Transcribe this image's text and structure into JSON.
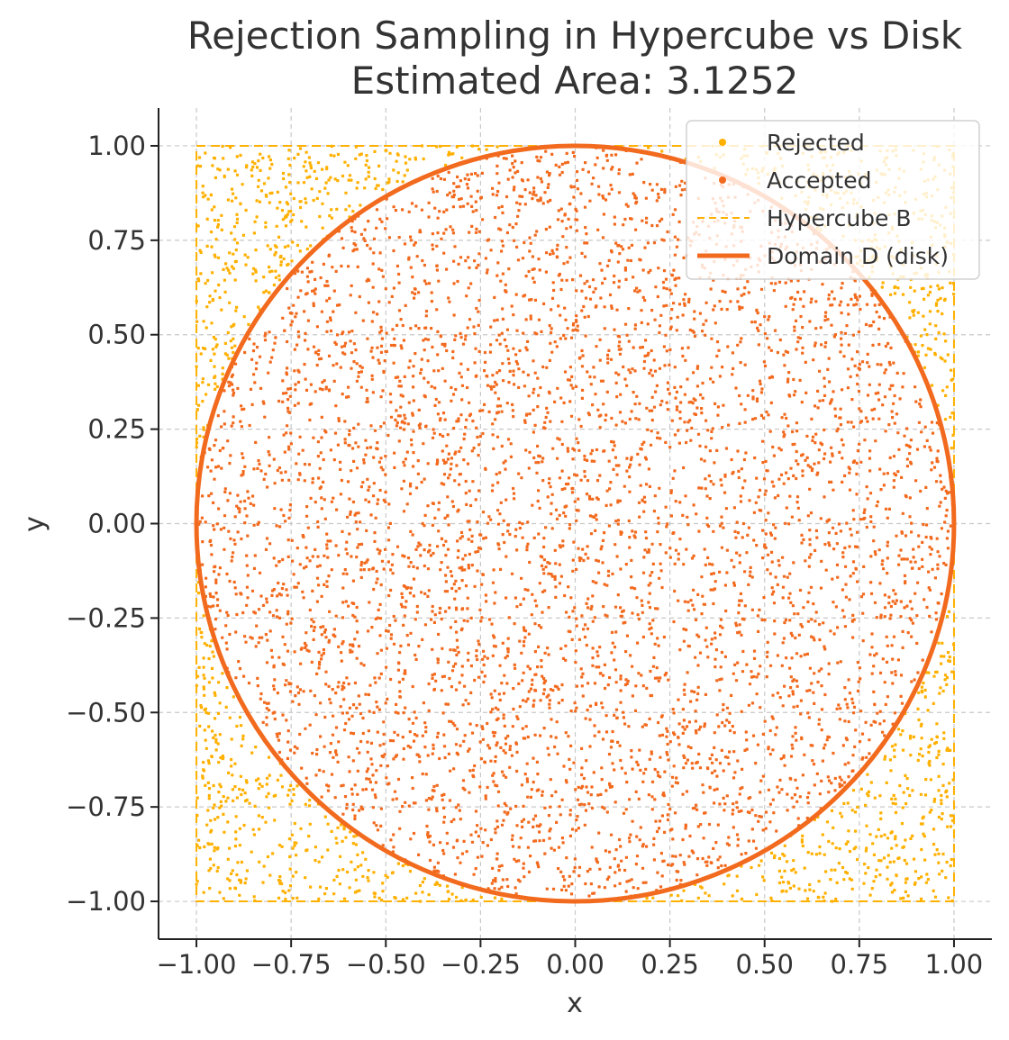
{
  "chart_data": {
    "type": "scatter",
    "title": "Rejection Sampling in Hypercube vs Disk",
    "subtitle": "Estimated Area: 3.1252",
    "xlabel": "x",
    "ylabel": "y",
    "xlim": [
      -1.1,
      1.1
    ],
    "ylim": [
      -1.1,
      1.1
    ],
    "x_ticks": [
      -1.0,
      -0.75,
      -0.5,
      -0.25,
      0.0,
      0.25,
      0.5,
      0.75,
      1.0
    ],
    "y_ticks": [
      -1.0,
      -0.75,
      -0.5,
      -0.25,
      0.0,
      0.25,
      0.5,
      0.75,
      1.0
    ],
    "x_tick_labels": [
      "−1.00",
      "−0.75",
      "−0.50",
      "−0.25",
      "0.00",
      "0.25",
      "0.50",
      "0.75",
      "1.00"
    ],
    "y_tick_labels": [
      "−1.00",
      "−0.75",
      "−0.50",
      "−0.25",
      "0.00",
      "0.25",
      "0.50",
      "0.75",
      "1.00"
    ],
    "grid": true,
    "legend_position": "top-right",
    "hypercube": {
      "xmin": -1.0,
      "xmax": 1.0,
      "ymin": -1.0,
      "ymax": 1.0
    },
    "disk": {
      "cx": 0.0,
      "cy": 0.0,
      "r": 1.0
    },
    "estimated_area": 3.1252,
    "series": [
      {
        "name": "Rejected",
        "kind": "points",
        "region": "inside hypercube, outside disk",
        "color": "#FFB000"
      },
      {
        "name": "Accepted",
        "kind": "points",
        "region": "inside disk",
        "color": "#F26A1E"
      },
      {
        "name": "Hypercube B",
        "kind": "dashed-line",
        "color": "#FFB000"
      },
      {
        "name": "Domain D (disk)",
        "kind": "solid-line",
        "color": "#F26A1E"
      }
    ]
  }
}
